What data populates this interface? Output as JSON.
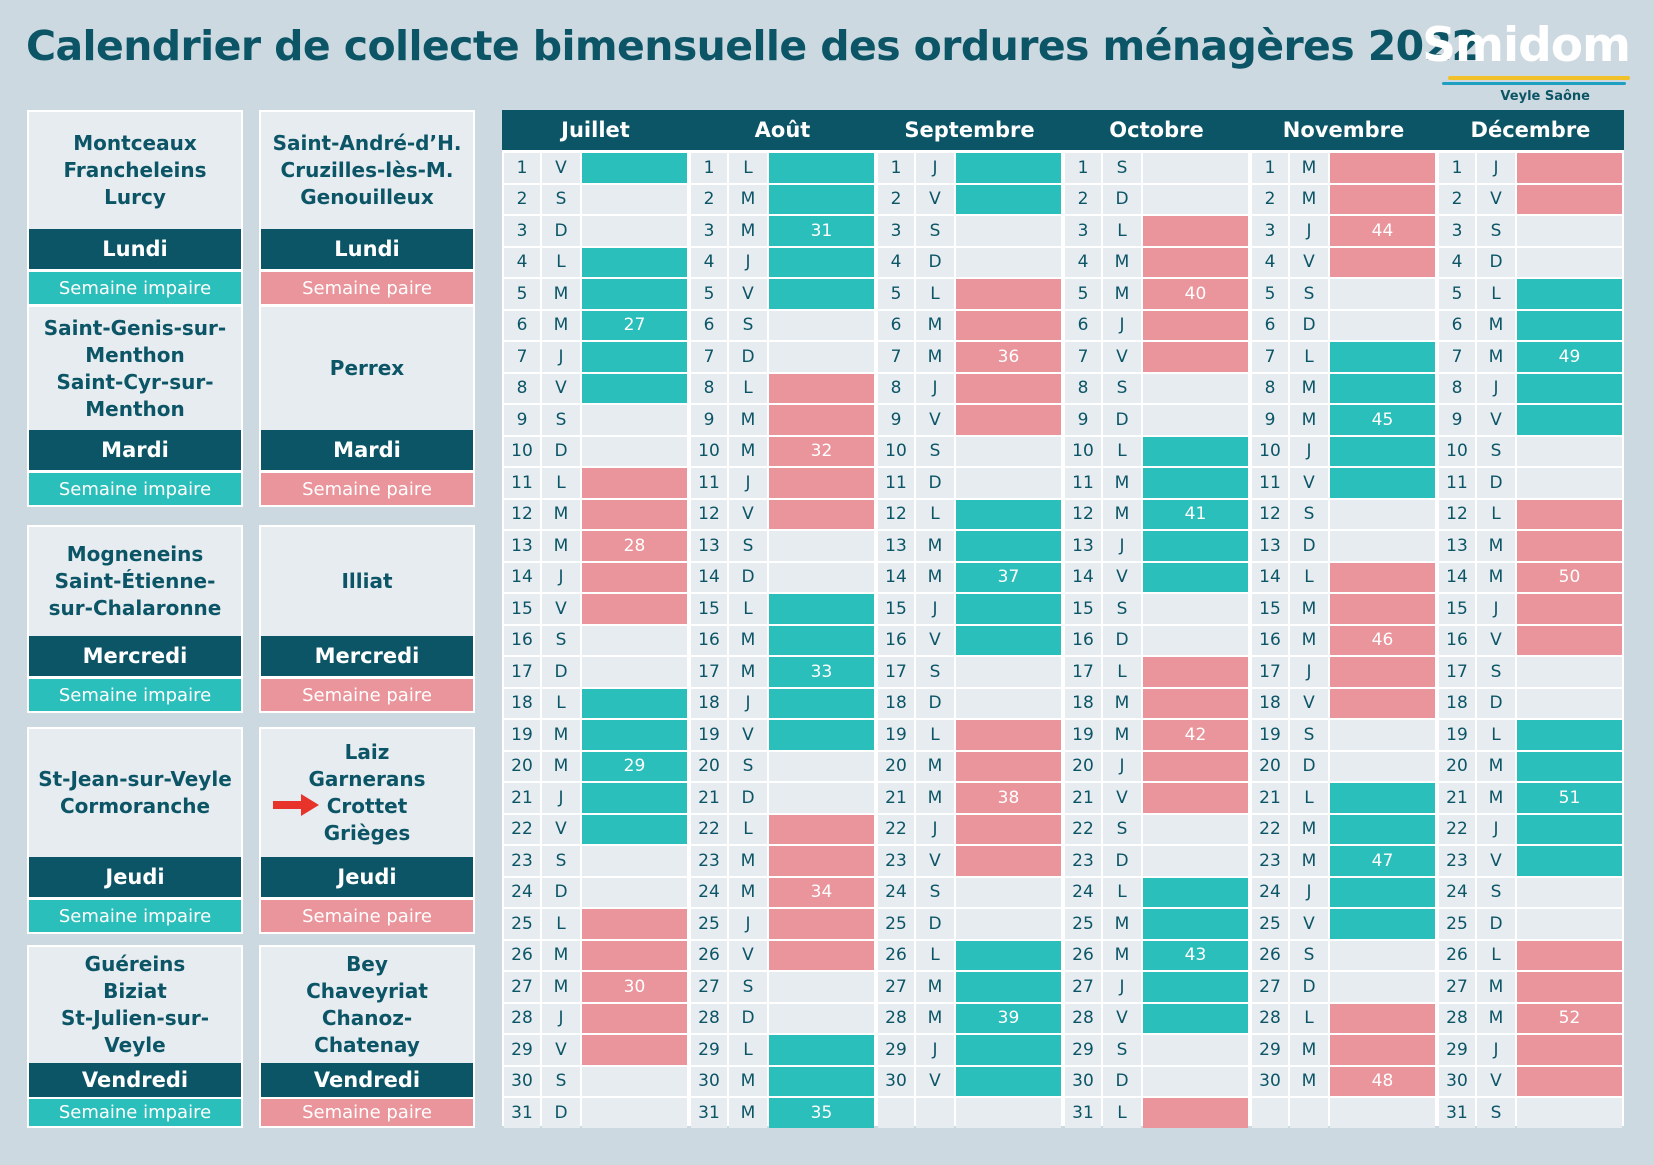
{
  "header": {
    "title": "Calendrier de collecte bimensuelle des ordures ménagères 2022",
    "logo_text": "Smidom",
    "logo_subtext": "Veyle Saône"
  },
  "colors": {
    "dark": "#0c5566",
    "teal": "#2bbfbb",
    "pink": "#ea949b",
    "background": "#cdd9e0",
    "cell": "#e6ecf0"
  },
  "communes": [
    {
      "names": [
        "Montceaux",
        "Francheleins",
        "Lurcy"
      ],
      "day": "Lundi",
      "week": "Semaine impaire",
      "parity": "impaire"
    },
    {
      "names": [
        "Saint-André-d’H.",
        "Cruzilles-lès-M.",
        "Genouilleux"
      ],
      "day": "Lundi",
      "week": "Semaine paire",
      "parity": "paire"
    },
    {
      "names": [
        "Saint-Genis-sur-",
        "Menthon",
        "Saint-Cyr-sur-",
        "Menthon"
      ],
      "day": "Mardi",
      "week": "Semaine impaire",
      "parity": "impaire"
    },
    {
      "names": [
        "Perrex"
      ],
      "day": "Mardi",
      "week": "Semaine paire",
      "parity": "paire"
    },
    {
      "names": [
        "Mogneneins",
        "Saint-Étienne-",
        "sur-Chalaronne"
      ],
      "day": "Mercredi",
      "week": "Semaine impaire",
      "parity": "impaire"
    },
    {
      "names": [
        "Illiat"
      ],
      "day": "Mercredi",
      "week": "Semaine paire",
      "parity": "paire"
    },
    {
      "names": [
        "St-Jean-sur-Veyle",
        "Cormoranche"
      ],
      "day": "Jeudi",
      "week": "Semaine impaire",
      "parity": "impaire"
    },
    {
      "names": [
        "Laiz",
        "Garnerans",
        "Crottet",
        "Grièges"
      ],
      "day": "Jeudi",
      "week": "Semaine paire",
      "parity": "paire",
      "arrow_icon": "red-arrow-icon"
    },
    {
      "names": [
        "Guéreins",
        "Biziat",
        "St-Julien-sur-Veyle"
      ],
      "day": "Vendredi",
      "week": "Semaine impaire",
      "parity": "impaire"
    },
    {
      "names": [
        "Bey",
        "Chaveyriat",
        "Chanoz-Chatenay"
      ],
      "day": "Vendredi",
      "week": "Semaine paire",
      "parity": "paire"
    }
  ],
  "months": [
    {
      "name": "Juillet",
      "days": 31,
      "first_weekday": "V",
      "weeks": [
        {
          "from": 1,
          "to": 3,
          "parity": "impaire"
        },
        {
          "from": 4,
          "to": 10,
          "num": "27"
        },
        {
          "from": 11,
          "to": 17,
          "num": "28"
        },
        {
          "from": 18,
          "to": 24,
          "num": "29"
        },
        {
          "from": 25,
          "to": 31,
          "num": "30"
        }
      ]
    },
    {
      "name": "Août",
      "days": 31,
      "first_weekday": "L",
      "weeks": [
        {
          "from": 1,
          "to": 7,
          "num": "31"
        },
        {
          "from": 8,
          "to": 14,
          "num": "32"
        },
        {
          "from": 15,
          "to": 21,
          "num": "33"
        },
        {
          "from": 22,
          "to": 28,
          "num": "34"
        },
        {
          "from": 29,
          "to": 31,
          "num": "35"
        }
      ]
    },
    {
      "name": "Septembre",
      "days": 30,
      "first_weekday": "J",
      "weeks": [
        {
          "from": 1,
          "to": 4,
          "parity": "impaire"
        },
        {
          "from": 5,
          "to": 11,
          "num": "36"
        },
        {
          "from": 12,
          "to": 18,
          "num": "37"
        },
        {
          "from": 19,
          "to": 25,
          "num": "38"
        },
        {
          "from": 26,
          "to": 30,
          "num": "39"
        }
      ]
    },
    {
      "name": "Octobre",
      "days": 31,
      "first_weekday": "S",
      "weeks": [
        {
          "from": 1,
          "to": 2,
          "parity": "none"
        },
        {
          "from": 3,
          "to": 9,
          "num": "40"
        },
        {
          "from": 10,
          "to": 16,
          "num": "41"
        },
        {
          "from": 17,
          "to": 23,
          "num": "42"
        },
        {
          "from": 24,
          "to": 30,
          "num": "43"
        },
        {
          "from": 31,
          "to": 31,
          "parity": "paire"
        }
      ]
    },
    {
      "name": "Novembre",
      "days": 30,
      "first_weekday": "M",
      "weeks": [
        {
          "from": 1,
          "to": 6,
          "num": "44"
        },
        {
          "from": 7,
          "to": 13,
          "num": "45"
        },
        {
          "from": 14,
          "to": 20,
          "num": "46"
        },
        {
          "from": 21,
          "to": 27,
          "num": "47"
        },
        {
          "from": 28,
          "to": 30,
          "num": "48"
        }
      ]
    },
    {
      "name": "Décembre",
      "days": 31,
      "first_weekday": "J",
      "weeks": [
        {
          "from": 1,
          "to": 4,
          "parity": "paire"
        },
        {
          "from": 5,
          "to": 11,
          "num": "49"
        },
        {
          "from": 12,
          "to": 18,
          "num": "50"
        },
        {
          "from": 19,
          "to": 25,
          "num": "51"
        },
        {
          "from": 26,
          "to": 31,
          "num": "52"
        }
      ]
    }
  ]
}
